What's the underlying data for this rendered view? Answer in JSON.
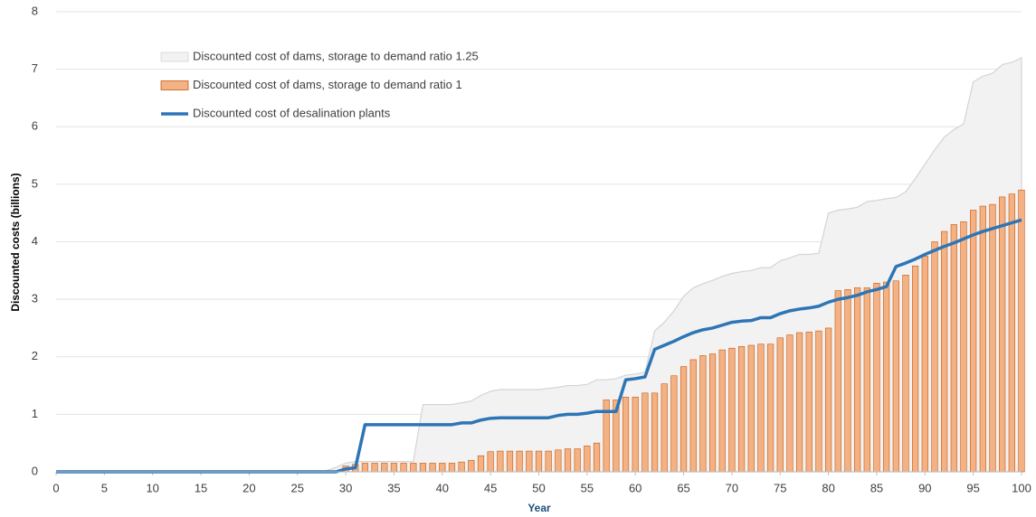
{
  "chart_data": {
    "type": "bar-line-area",
    "x_label": "Year",
    "y_label": "Discounted costs (billions)",
    "x": [
      0,
      1,
      2,
      3,
      4,
      5,
      6,
      7,
      8,
      9,
      10,
      11,
      12,
      13,
      14,
      15,
      16,
      17,
      18,
      19,
      20,
      21,
      22,
      23,
      24,
      25,
      26,
      27,
      28,
      29,
      30,
      31,
      32,
      33,
      34,
      35,
      36,
      37,
      38,
      39,
      40,
      41,
      42,
      43,
      44,
      45,
      46,
      47,
      48,
      49,
      50,
      51,
      52,
      53,
      54,
      55,
      56,
      57,
      58,
      59,
      60,
      61,
      62,
      63,
      64,
      65,
      66,
      67,
      68,
      69,
      70,
      71,
      72,
      73,
      74,
      75,
      76,
      77,
      78,
      79,
      80,
      81,
      82,
      83,
      84,
      85,
      86,
      87,
      88,
      89,
      90,
      91,
      92,
      93,
      94,
      95,
      96,
      97,
      98,
      99,
      100
    ],
    "series": [
      {
        "name": "Discounted cost of dams, storage to demand ratio 1.25",
        "kind": "area",
        "color": "#f2f2f2",
        "edge_color": "#d4d4d4",
        "values": [
          0,
          0,
          0,
          0,
          0,
          0,
          0,
          0,
          0,
          0,
          0,
          0,
          0,
          0,
          0,
          0,
          0,
          0,
          0,
          0,
          0,
          0,
          0,
          0,
          0,
          0,
          0,
          0,
          0.02,
          0.08,
          0.15,
          0.18,
          0.18,
          0.18,
          0.18,
          0.18,
          0.18,
          0.18,
          1.17,
          1.17,
          1.17,
          1.17,
          1.2,
          1.23,
          1.33,
          1.4,
          1.43,
          1.43,
          1.43,
          1.43,
          1.43,
          1.45,
          1.47,
          1.5,
          1.5,
          1.52,
          1.6,
          1.6,
          1.62,
          1.68,
          1.7,
          1.73,
          2.45,
          2.6,
          2.8,
          3.05,
          3.2,
          3.27,
          3.33,
          3.4,
          3.45,
          3.48,
          3.5,
          3.55,
          3.55,
          3.67,
          3.72,
          3.78,
          3.78,
          3.8,
          4.5,
          4.55,
          4.57,
          4.6,
          4.7,
          4.72,
          4.75,
          4.77,
          4.87,
          5.1,
          5.35,
          5.6,
          5.82,
          5.95,
          6.05,
          6.78,
          6.88,
          6.93,
          7.08,
          7.12,
          7.2
        ]
      },
      {
        "name": "Discounted cost of dams, storage to demand ratio 1",
        "kind": "bar",
        "color": "#f4b183",
        "edge_color": "#c55a11",
        "values": [
          0,
          0,
          0,
          0,
          0,
          0,
          0,
          0,
          0,
          0,
          0,
          0,
          0,
          0,
          0,
          0,
          0,
          0,
          0,
          0,
          0,
          0,
          0,
          0,
          0,
          0,
          0,
          0,
          0,
          0,
          0.1,
          0.13,
          0.15,
          0.15,
          0.15,
          0.15,
          0.15,
          0.15,
          0.15,
          0.15,
          0.15,
          0.15,
          0.17,
          0.2,
          0.28,
          0.35,
          0.36,
          0.36,
          0.36,
          0.36,
          0.36,
          0.36,
          0.38,
          0.4,
          0.4,
          0.45,
          0.5,
          1.25,
          1.25,
          1.3,
          1.3,
          1.37,
          1.37,
          1.53,
          1.67,
          1.83,
          1.95,
          2.02,
          2.05,
          2.12,
          2.15,
          2.18,
          2.2,
          2.22,
          2.22,
          2.33,
          2.38,
          2.42,
          2.43,
          2.45,
          2.5,
          3.15,
          3.17,
          3.2,
          3.2,
          3.28,
          3.3,
          3.32,
          3.42,
          3.58,
          3.75,
          4.0,
          4.18,
          4.3,
          4.35,
          4.55,
          4.62,
          4.65,
          4.78,
          4.83,
          4.9
        ]
      },
      {
        "name": "Discounted cost of desalination plants",
        "kind": "line",
        "color": "#2e75b6",
        "values": [
          0,
          0,
          0,
          0,
          0,
          0,
          0,
          0,
          0,
          0,
          0,
          0,
          0,
          0,
          0,
          0,
          0,
          0,
          0,
          0,
          0,
          0,
          0,
          0,
          0,
          0,
          0,
          0,
          0,
          0,
          0.05,
          0.07,
          0.82,
          0.82,
          0.82,
          0.82,
          0.82,
          0.82,
          0.82,
          0.82,
          0.82,
          0.82,
          0.85,
          0.85,
          0.9,
          0.93,
          0.94,
          0.94,
          0.94,
          0.94,
          0.94,
          0.94,
          0.98,
          1.0,
          1.0,
          1.02,
          1.05,
          1.05,
          1.05,
          1.6,
          1.62,
          1.65,
          2.13,
          2.2,
          2.27,
          2.35,
          2.42,
          2.47,
          2.5,
          2.55,
          2.6,
          2.62,
          2.63,
          2.68,
          2.68,
          2.75,
          2.8,
          2.83,
          2.85,
          2.88,
          2.95,
          3.0,
          3.03,
          3.07,
          3.13,
          3.17,
          3.22,
          3.57,
          3.63,
          3.7,
          3.78,
          3.85,
          3.92,
          3.98,
          4.05,
          4.12,
          4.18,
          4.23,
          4.28,
          4.33,
          4.38
        ]
      }
    ],
    "xlim": [
      0,
      100
    ],
    "xticks": [
      0,
      5,
      10,
      15,
      20,
      25,
      30,
      35,
      40,
      45,
      50,
      55,
      60,
      65,
      70,
      75,
      80,
      85,
      90,
      95,
      100
    ],
    "ylim": [
      0,
      8
    ],
    "yticks": [
      0,
      1,
      2,
      3,
      4,
      5,
      6,
      7,
      8
    ],
    "grid": true,
    "legend": "upper-left"
  }
}
